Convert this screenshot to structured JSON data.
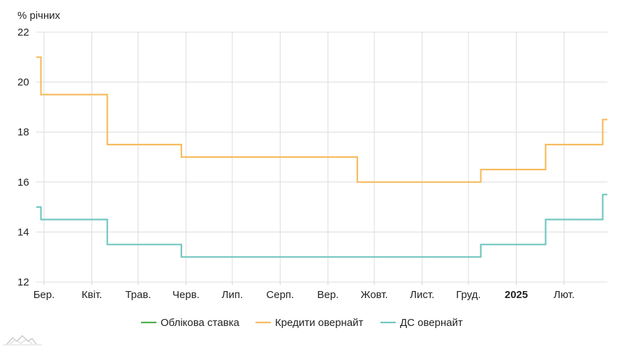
{
  "chart_data": {
    "type": "line",
    "ylabel": "% річних",
    "ylim": [
      12,
      22
    ],
    "y_ticks": [
      12,
      14,
      16,
      18,
      20,
      22
    ],
    "x_range": [
      "2024-02-25",
      "2025-03-01"
    ],
    "x_ticks": [
      {
        "date": "2024-03-01",
        "label": "Бер.",
        "bold": false
      },
      {
        "date": "2024-04-01",
        "label": "Квіт.",
        "bold": false
      },
      {
        "date": "2024-05-01",
        "label": "Трав.",
        "bold": false
      },
      {
        "date": "2024-06-01",
        "label": "Черв.",
        "bold": false
      },
      {
        "date": "2024-07-01",
        "label": "Лип.",
        "bold": false
      },
      {
        "date": "2024-08-01",
        "label": "Серп.",
        "bold": false
      },
      {
        "date": "2024-09-01",
        "label": "Вер.",
        "bold": false
      },
      {
        "date": "2024-10-01",
        "label": "Жовт.",
        "bold": false
      },
      {
        "date": "2024-11-01",
        "label": "Лист.",
        "bold": false
      },
      {
        "date": "2024-12-01",
        "label": "Груд.",
        "bold": false
      },
      {
        "date": "2025-01-01",
        "label": "2025",
        "bold": true
      },
      {
        "date": "2025-02-01",
        "label": "Лют.",
        "bold": false
      }
    ],
    "grid": true,
    "legend_position": "bottom",
    "series": [
      {
        "name": "Облікова ставка",
        "color": "#4caf50",
        "step": true,
        "points": []
      },
      {
        "name": "Кредити овернайт",
        "color": "#f7bb5f",
        "step": true,
        "points": [
          [
            "2024-02-25",
            21.0
          ],
          [
            "2024-02-28",
            19.5
          ],
          [
            "2024-04-11",
            17.5
          ],
          [
            "2024-05-29",
            17.0
          ],
          [
            "2024-09-20",
            16.0
          ],
          [
            "2024-12-09",
            16.5
          ],
          [
            "2025-01-20",
            17.5
          ],
          [
            "2025-02-26",
            18.5
          ],
          [
            "2025-03-01",
            18.5
          ]
        ]
      },
      {
        "name": "ДС овернайт",
        "color": "#72c6c0",
        "step": true,
        "points": [
          [
            "2024-02-25",
            15.0
          ],
          [
            "2024-02-28",
            14.5
          ],
          [
            "2024-04-11",
            13.5
          ],
          [
            "2024-05-29",
            13.0
          ],
          [
            "2024-12-09",
            13.5
          ],
          [
            "2025-01-20",
            14.5
          ],
          [
            "2025-02-26",
            15.5
          ],
          [
            "2025-03-01",
            15.5
          ]
        ]
      }
    ]
  }
}
